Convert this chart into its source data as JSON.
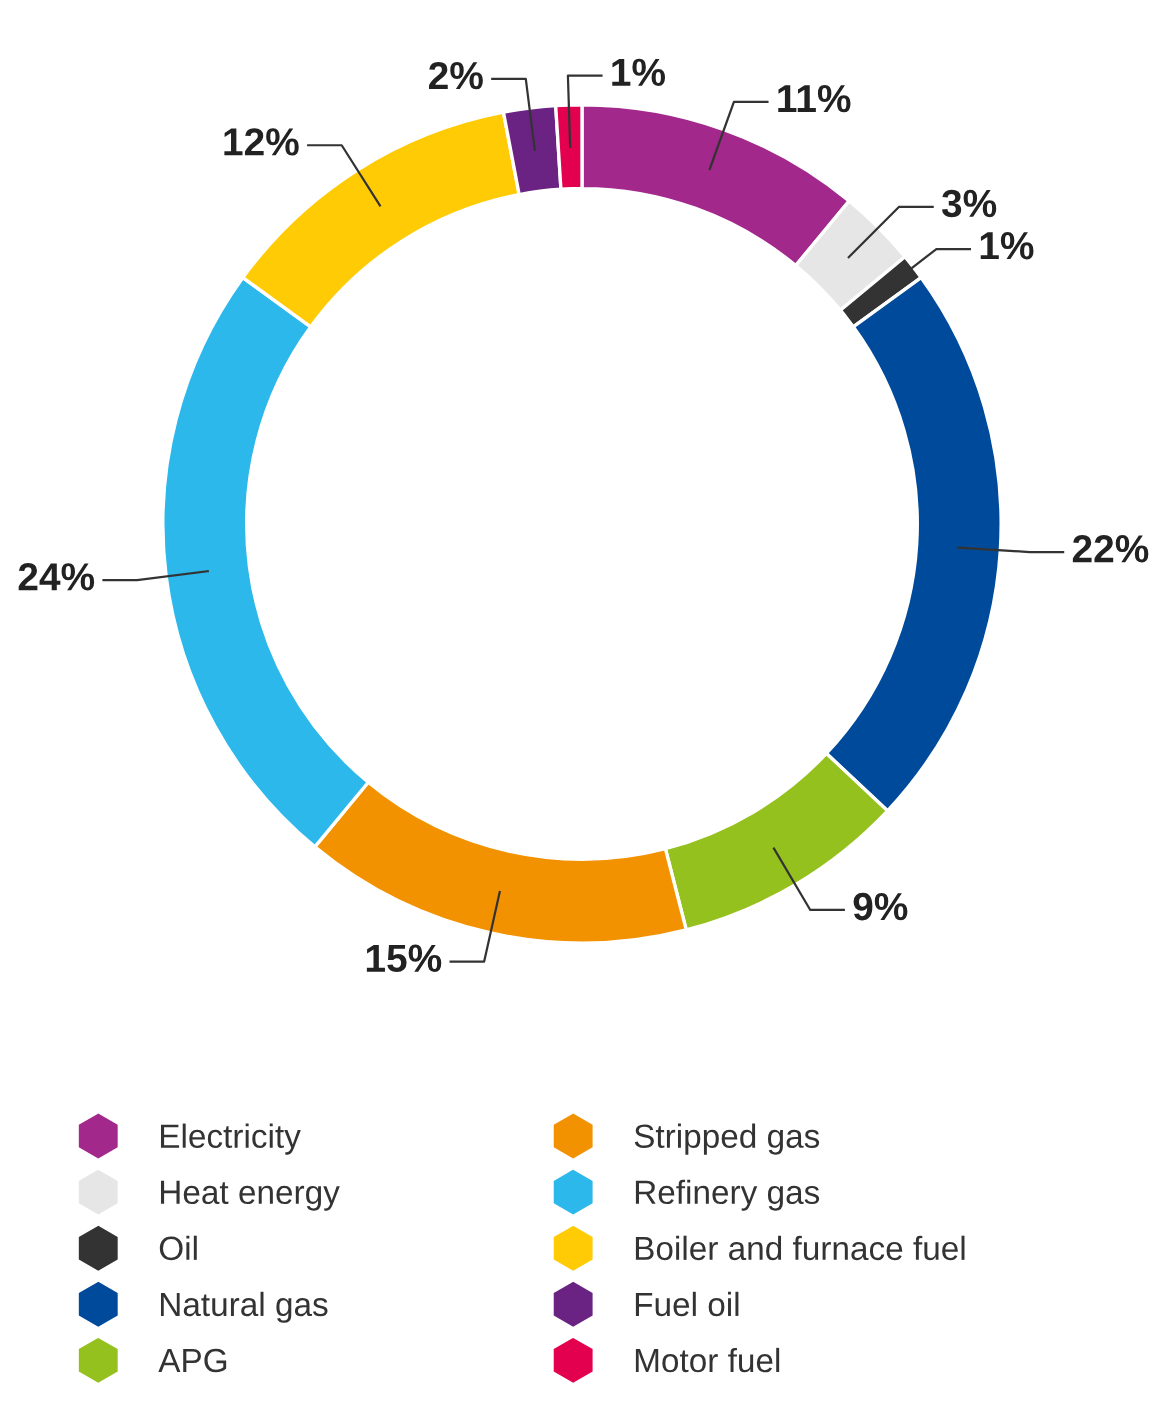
{
  "chart_data": {
    "type": "donut",
    "categories": [
      "Electricity",
      "Heat energy",
      "Oil",
      "Natural gas",
      "APG",
      "Stripped gas",
      "Refinery gas",
      "Boiler and furnace fuel",
      "Fuel oil",
      "Motor fuel"
    ],
    "values": [
      11,
      3,
      1,
      22,
      9,
      15,
      24,
      12,
      2,
      1
    ],
    "colors": [
      "#a3288c",
      "#e6e6e6",
      "#333333",
      "#004a9b",
      "#95c11f",
      "#f39200",
      "#2cb8eb",
      "#ffcb05",
      "#6a2382",
      "#e2004f"
    ],
    "value_labels": [
      "11%",
      "3%",
      "1%",
      "22%",
      "9%",
      "15%",
      "24%",
      "12%",
      "2%",
      "1%"
    ],
    "legend": "bottom"
  }
}
